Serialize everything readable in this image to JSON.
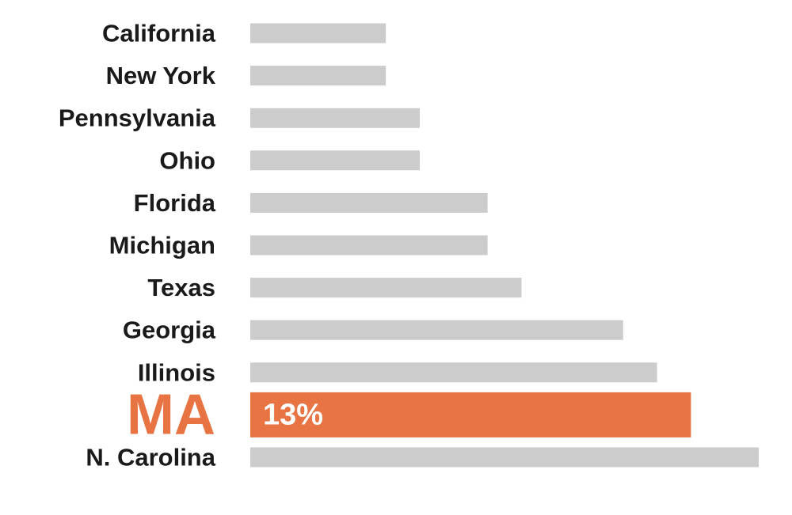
{
  "colors": {
    "bar": "#cccccc",
    "highlight": "#e87443",
    "label": "#1a1a1a"
  },
  "chart_data": {
    "type": "bar",
    "orientation": "horizontal",
    "title": "",
    "xlabel": "",
    "ylabel": "",
    "grid": false,
    "xlim": [
      0,
      15
    ],
    "categories": [
      "California",
      "New York",
      "Pennsylvania",
      "Ohio",
      "Florida",
      "Michigan",
      "Texas",
      "Georgia",
      "Illinois",
      "MA",
      "N. Carolina"
    ],
    "values": [
      4,
      4,
      5,
      5,
      7,
      7,
      8,
      11,
      12,
      13,
      15
    ],
    "highlight_category": "MA",
    "data_labels": [
      {
        "category": "MA",
        "text": "13%"
      }
    ]
  }
}
